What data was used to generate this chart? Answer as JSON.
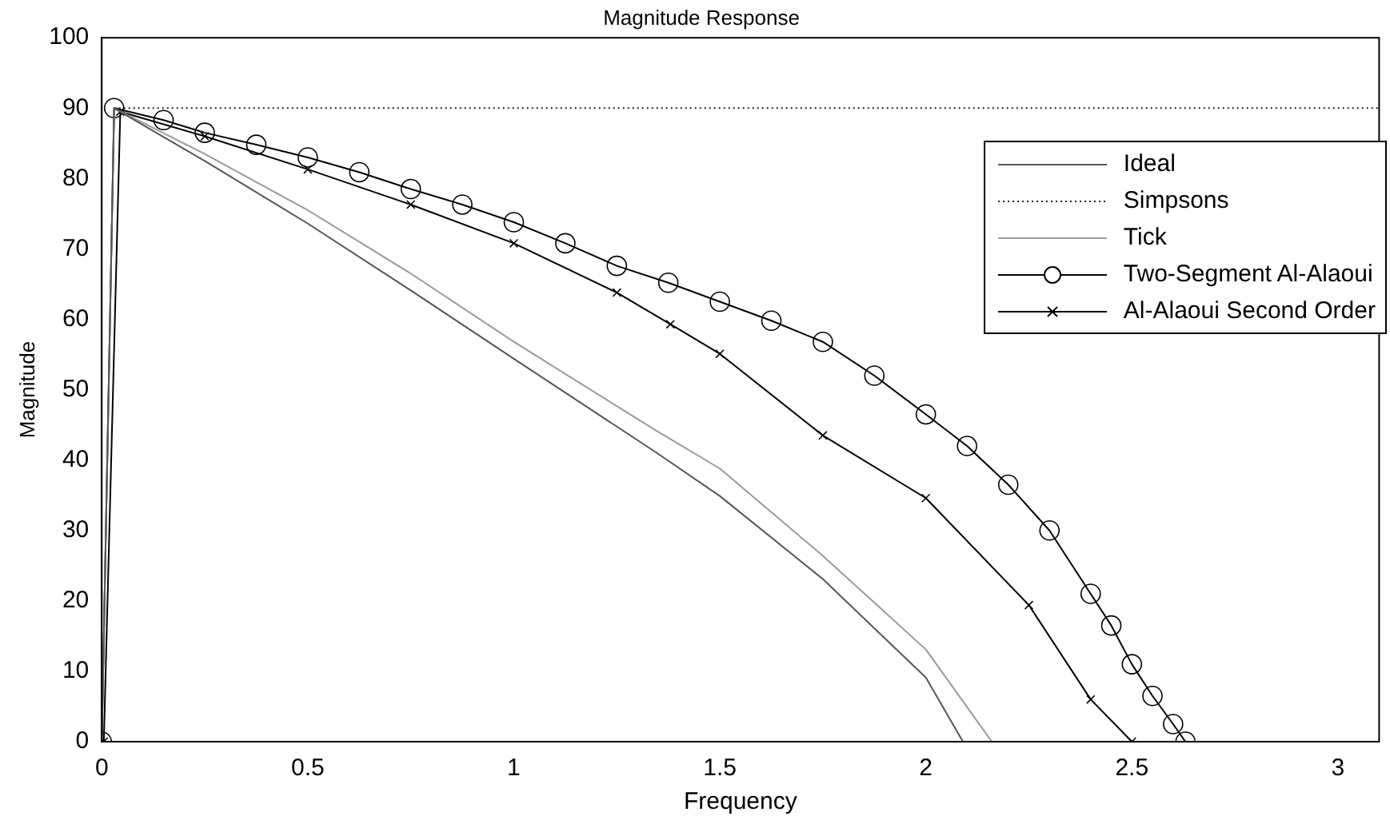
{
  "chart_data": {
    "type": "line",
    "title": "Magnitude Response",
    "xlabel": "Frequency",
    "ylabel": "Magnitude",
    "xlim": [
      0,
      3.1
    ],
    "xticks": [
      0,
      0.5,
      1,
      1.5,
      2,
      2.5,
      3
    ],
    "ylim": [
      0,
      100
    ],
    "yticks": [
      0,
      10,
      20,
      30,
      40,
      50,
      60,
      70,
      80,
      90,
      100
    ],
    "grid": false,
    "legend": "top right",
    "series": [
      {
        "name": "Ideal",
        "color": "#555555",
        "marker": "none",
        "line_style": "solid",
        "x": [
          0,
          0.03,
          0.25,
          0.5,
          0.75,
          1,
          1.345,
          1.5,
          1.75,
          2,
          2.09
        ],
        "values": [
          0,
          90,
          82.5,
          73.6,
          64.1,
          54.4,
          41.1,
          34.9,
          23.1,
          9.1,
          0
        ]
      },
      {
        "name": "Simpsons",
        "color": "#222222",
        "marker": "none",
        "line_style": "dotted",
        "x": [
          0.03,
          3.1
        ],
        "values": [
          90,
          90
        ]
      },
      {
        "name": "Tick",
        "color": "#999999",
        "marker": "none",
        "line_style": "solid",
        "x": [
          0,
          0.03,
          0.25,
          0.5,
          0.75,
          1,
          1.345,
          1.5,
          1.75,
          2,
          2.16
        ],
        "values": [
          0,
          90,
          83.5,
          75.5,
          66.5,
          56.8,
          44.2,
          38.8,
          26.4,
          13.1,
          0
        ]
      },
      {
        "name": "Two-Segment Al-Alaoui",
        "color": "#000000",
        "marker": "circle",
        "line_style": "solid",
        "x": [
          0,
          0.03,
          0.15,
          0.25,
          0.375,
          0.5,
          0.625,
          0.75,
          0.875,
          1,
          1.125,
          1.25,
          1.375,
          1.5,
          1.625,
          1.75,
          1.875,
          2,
          2.1,
          2.2,
          2.3,
          2.4,
          2.45,
          2.5,
          2.55,
          2.6,
          2.63
        ],
        "values": [
          0,
          90,
          88.3,
          86.5,
          84.8,
          83,
          80.9,
          78.5,
          76.3,
          73.8,
          70.8,
          67.6,
          65.2,
          62.5,
          59.8,
          56.8,
          52,
          46.5,
          42,
          36.5,
          30,
          21,
          16.5,
          11,
          6.5,
          2.5,
          0
        ]
      },
      {
        "name": "Al-Alaoui Second Order",
        "color": "#000000",
        "marker": "cross",
        "line_style": "solid",
        "x": [
          0.005,
          0.045,
          0.25,
          0.5,
          0.75,
          1,
          1.25,
          1.38,
          1.5,
          1.75,
          2,
          2.25,
          2.4,
          2.5
        ],
        "values": [
          0,
          89.5,
          86,
          81.3,
          76.3,
          70.8,
          63.8,
          59.3,
          55.1,
          43.5,
          34.6,
          19.4,
          6,
          0
        ]
      }
    ]
  }
}
